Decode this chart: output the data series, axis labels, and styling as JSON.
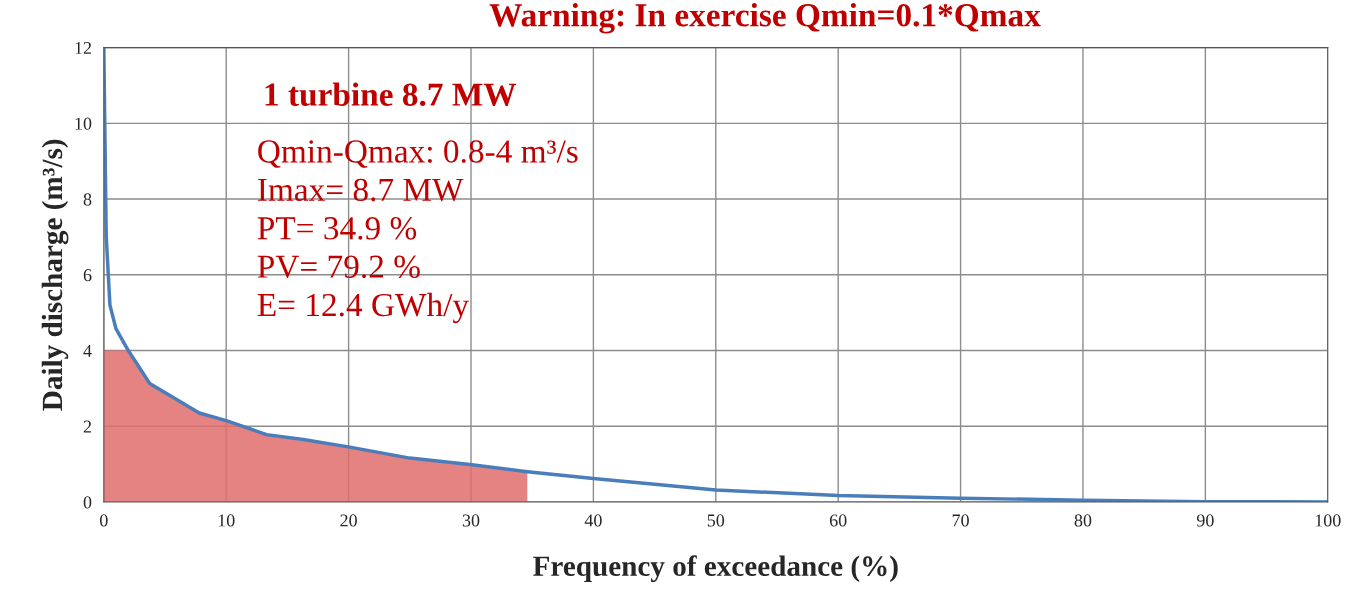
{
  "chart_data": {
    "type": "line",
    "title": "Warning: In exercise Qmin=0.1*Qmax",
    "xlabel": "Frequency of exceedance (%)",
    "ylabel": "Daily discharge (m³/s)",
    "annotations": [
      "1 turbine 8.7 MW",
      "Qmin-Qmax: 0.8-4 m³/s",
      "Imax= 8.7 MW",
      "PT= 34.9 %",
      "PV= 79.2 %",
      "E= 12.4 GWh/y"
    ],
    "series": [
      {
        "type": "area",
        "color": "#e06c6c",
        "x": [
          0,
          2,
          3.75,
          7.8,
          10,
          13.3,
          16.3,
          20.1,
          25,
          29.9,
          34.6
        ],
        "values": [
          4,
          4,
          3.13,
          2.35,
          2.15,
          1.78,
          1.65,
          1.45,
          1.16,
          0.99,
          0.8
        ]
      },
      {
        "color": "#4a7ebb",
        "x": [
          0,
          0.2,
          0.5,
          1,
          2,
          3.75,
          7.8,
          10,
          13.3,
          16.3,
          20.1,
          25,
          29.9,
          34.6,
          40,
          50,
          60,
          70,
          80,
          90,
          100
        ],
        "values": [
          12,
          7,
          5.2,
          4.57,
          4,
          3.13,
          2.35,
          2.15,
          1.78,
          1.65,
          1.45,
          1.16,
          0.99,
          0.8,
          0.62,
          0.32,
          0.17,
          0.1,
          0.05,
          0.01,
          0
        ]
      }
    ],
    "xlim": [
      0,
      100
    ],
    "xticks": [
      0,
      10,
      20,
      30,
      40,
      50,
      60,
      70,
      80,
      90,
      100
    ],
    "ylim": [
      0,
      12
    ],
    "yticks": [
      0,
      2,
      4,
      6,
      8,
      10,
      12
    ],
    "grid": true
  }
}
